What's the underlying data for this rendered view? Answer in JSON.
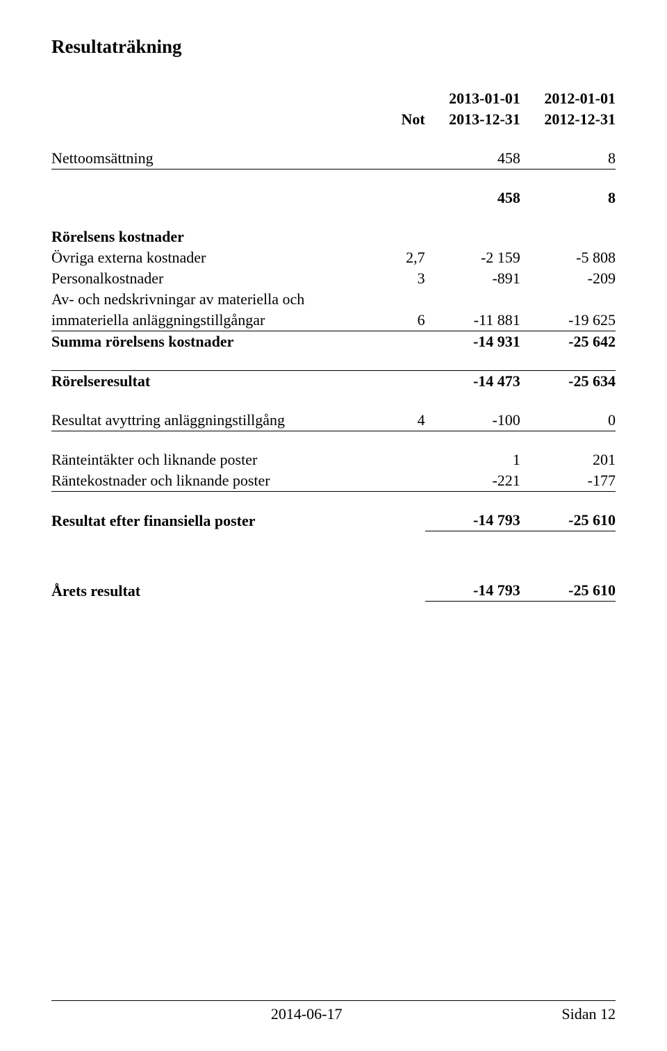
{
  "title": "Resultaträkning",
  "header": {
    "note_label": "Not",
    "year1_line1": "2013-01-01",
    "year1_line2": "2013-12-31",
    "year2_line1": "2012-01-01",
    "year2_line2": "2012-12-31"
  },
  "rows": {
    "nettooms": {
      "label": "Nettoomsättning",
      "note": "",
      "y1": "458",
      "y2": "8"
    },
    "sum_netto": {
      "y1": "458",
      "y2": "8"
    },
    "rorelsens_kostnader_hdr": "Rörelsens kostnader",
    "ovriga": {
      "label": "Övriga externa kostnader",
      "note": "2,7",
      "y1": "-2 159",
      "y2": "-5 808"
    },
    "personal": {
      "label": "Personalkostnader",
      "note": "3",
      "y1": "-891",
      "y2": "-209"
    },
    "avskr_line1": "Av- och nedskrivningar av materiella och",
    "avskr_line2": "immateriella anläggningstillgångar",
    "avskr": {
      "note": "6",
      "y1": "-11 881",
      "y2": "-19 625"
    },
    "summa_kost": {
      "label": "Summa rörelsens kostnader",
      "y1": "-14 931",
      "y2": "-25 642"
    },
    "rorelseresultat": {
      "label": "Rörelseresultat",
      "y1": "-14 473",
      "y2": "-25 634"
    },
    "avyttring": {
      "label": "Resultat avyttring anläggningstillgång",
      "note": "4",
      "y1": "-100",
      "y2": "0"
    },
    "ranteint": {
      "label": "Ränteintäkter och liknande poster",
      "y1": "1",
      "y2": "201"
    },
    "rantekost": {
      "label": "Räntekostnader och liknande poster",
      "y1": "-221",
      "y2": "-177"
    },
    "finans": {
      "label": "Resultat efter finansiella poster",
      "y1": "-14 793",
      "y2": "-25 610"
    },
    "arets": {
      "label": "Årets resultat",
      "y1": "-14 793",
      "y2": "-25 610"
    }
  },
  "footer": {
    "date": "2014-06-17",
    "page": "Sidan 12"
  },
  "colors": {
    "text": "#000000",
    "background": "#ffffff",
    "rule": "#000000"
  },
  "fonts": {
    "family": "Times New Roman",
    "title_size_pt": 20,
    "body_size_pt": 16
  }
}
